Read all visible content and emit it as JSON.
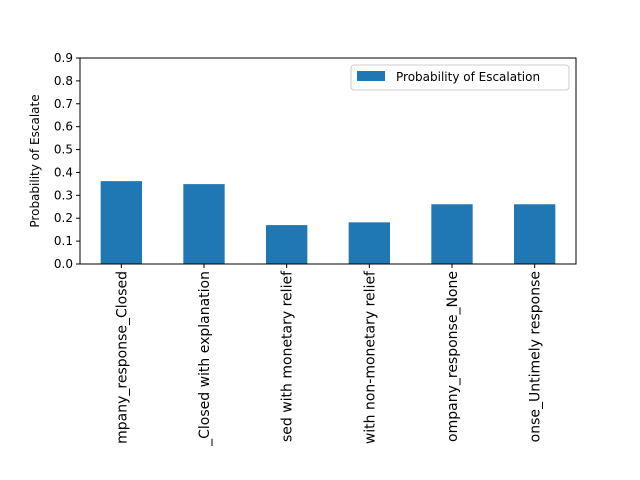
{
  "chart_data": {
    "type": "bar",
    "title": "",
    "xlabel": "",
    "ylabel": "Probability of Escalate",
    "categories": [
      "Company_response_Closed",
      "Company_response_Closed with explanation",
      "Company_response_Closed with monetary relief",
      "Company_response_Closed with non-monetary relief",
      "Company_response_None",
      "Company_response_Untimely response"
    ],
    "visible_tick_labels": [
      "mpany_response_Closed",
      "_Closed with explanation",
      "sed with monetary relief",
      "with non-monetary relief",
      "ompany_response_None",
      "onse_Untimely response"
    ],
    "series": [
      {
        "name": "Probability of Escalation",
        "values": [
          0.362,
          0.349,
          0.17,
          0.182,
          0.261,
          0.261
        ],
        "color": "#1f77b4"
      }
    ],
    "ylim": [
      0,
      0.9
    ],
    "yticks": [
      0.0,
      0.1,
      0.2,
      0.3,
      0.4,
      0.5,
      0.6,
      0.7,
      0.8,
      0.9
    ],
    "ytick_labels": [
      "0.0",
      "0.1",
      "0.2",
      "0.3",
      "0.4",
      "0.5",
      "0.6",
      "0.7",
      "0.8",
      "0.9"
    ],
    "grid": false,
    "legend": "top-right"
  }
}
